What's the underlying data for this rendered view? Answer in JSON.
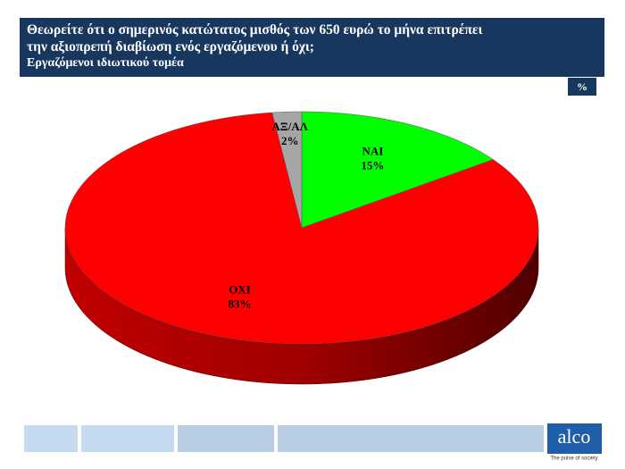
{
  "chart_data": {
    "type": "pie",
    "title": "Θεωρείτε ότι ο σημερινός κατώτατος μισθός των 650 ευρώ το μήνα επιτρέπει την αξιοπρεπή διαβίωση ενός εργαζόμενου ή όχι;",
    "subtitle": "Εργαζόμενοι ιδιωτικού τομέα",
    "unit_label": "%",
    "categories": [
      "ΝΑΙ",
      "ΟΧΙ",
      "ΑΞ/ΑΛ"
    ],
    "values": [
      15,
      83,
      2
    ],
    "value_labels": [
      "15%",
      "83%",
      "2%"
    ],
    "colors": [
      "#00ff00",
      "#ff0000",
      "#a6a6a6"
    ]
  },
  "footer": {
    "logo": "alco",
    "tagline": "The pulse of society"
  }
}
